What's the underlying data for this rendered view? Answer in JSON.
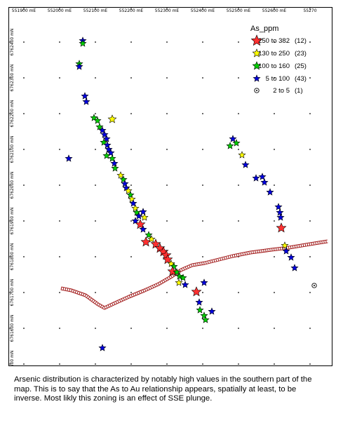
{
  "map": {
    "x_ticks": [
      "551900 mE",
      "552000 mE",
      "552100 mE",
      "552200 mE",
      "552300 mE",
      "552400 mE",
      "552500 mE",
      "552600 mE",
      "55270"
    ],
    "y_ticks": [
      "6762400 mN",
      "6762300 mN",
      "6762200 mN",
      "6762100 mN",
      "6762000 mN",
      "6761900 mN",
      "6761800 mN",
      "6761700 mN",
      "6761600 mN",
      "6761500 mN",
      "6761400 mN"
    ],
    "colors": {
      "class_250_382": "#ff3030",
      "class_130_250": "#ffff00",
      "class_100_160": "#00cc00",
      "class_5_100": "#0000dd",
      "class_2_5": "#000000",
      "road": "#a01818"
    },
    "icons": [
      "star-icon",
      "circle-dot-icon"
    ]
  },
  "legend": {
    "title": "As_ppm",
    "items": [
      {
        "range": "250 to 382",
        "count": "(12)",
        "color": "#ff3030",
        "symbol": "star-large"
      },
      {
        "range": "130 to 250",
        "count": "(23)",
        "color": "#ffff00",
        "symbol": "star-medium"
      },
      {
        "range": "100 to 160",
        "count": "(25)",
        "color": "#00cc00",
        "symbol": "star-medium"
      },
      {
        "range": "5 to 100",
        "count": "(43)",
        "color": "#0000dd",
        "symbol": "star-small"
      },
      {
        "range": "2 to 5",
        "count": "(1)",
        "color": "#000000",
        "symbol": "circle-dot"
      }
    ]
  },
  "caption": "Arsenic distribution is characterized by notably high values in the southern part of the map. This is to say that the As to Au relationship appears, spatially at least, to be inverse. Most likly this zoning is an effect of SSE plunge."
}
